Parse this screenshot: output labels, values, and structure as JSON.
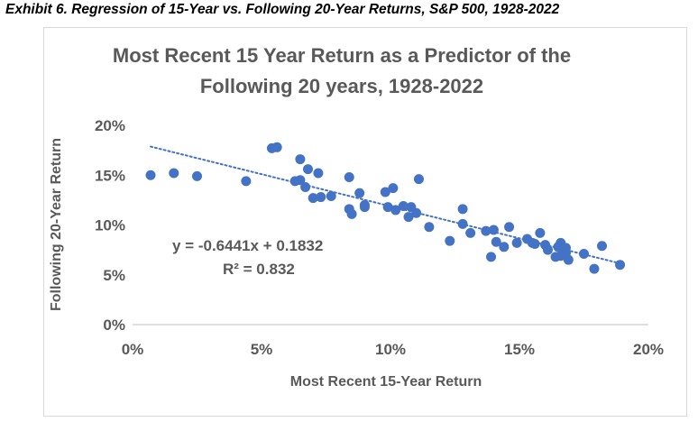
{
  "exhibit_title": "Exhibit 6. Regression of 15-Year vs. Following 20-Year Returns, S&P 500, 1928-2022",
  "colors": {
    "marker": "#4472c4",
    "trendline": "#4472c4",
    "text": "#595959",
    "axis": "#bfbfbf"
  },
  "chart_data": {
    "type": "scatter",
    "title": "Most Recent 15 Year Return as a Predictor of the Following 20 years, 1928-2022",
    "title_lines": [
      "Most Recent 15 Year Return as a Predictor of the",
      "Following 20 years, 1928-2022"
    ],
    "xlabel": "Most Recent 15-Year Return",
    "ylabel": "Following 20-Year Return",
    "xlim": [
      0,
      0.2
    ],
    "ylim": [
      0,
      0.2
    ],
    "xticks": [
      0,
      0.05,
      0.1,
      0.15,
      0.2
    ],
    "yticks": [
      0,
      0.05,
      0.1,
      0.15,
      0.2
    ],
    "xtick_labels": [
      "0%",
      "5%",
      "10%",
      "15%",
      "20%"
    ],
    "ytick_labels": [
      "0%",
      "5%",
      "10%",
      "15%",
      "20%"
    ],
    "grid": false,
    "legend": "none",
    "trendline": {
      "slope": -0.6441,
      "intercept": 0.1832,
      "style": "dotted",
      "x_range": [
        0.007,
        0.19
      ]
    },
    "annotations": [
      "y = -0.6441x + 0.1832",
      "R² = 0.832"
    ],
    "points": [
      [
        0.007,
        0.15
      ],
      [
        0.016,
        0.152
      ],
      [
        0.025,
        0.149
      ],
      [
        0.044,
        0.144
      ],
      [
        0.054,
        0.177
      ],
      [
        0.056,
        0.178
      ],
      [
        0.063,
        0.144
      ],
      [
        0.065,
        0.145
      ],
      [
        0.065,
        0.166
      ],
      [
        0.067,
        0.138
      ],
      [
        0.068,
        0.156
      ],
      [
        0.07,
        0.127
      ],
      [
        0.072,
        0.152
      ],
      [
        0.073,
        0.128
      ],
      [
        0.077,
        0.129
      ],
      [
        0.084,
        0.148
      ],
      [
        0.084,
        0.116
      ],
      [
        0.085,
        0.111
      ],
      [
        0.088,
        0.132
      ],
      [
        0.09,
        0.12
      ],
      [
        0.09,
        0.118
      ],
      [
        0.098,
        0.133
      ],
      [
        0.099,
        0.118
      ],
      [
        0.101,
        0.137
      ],
      [
        0.102,
        0.115
      ],
      [
        0.105,
        0.119
      ],
      [
        0.107,
        0.108
      ],
      [
        0.108,
        0.118
      ],
      [
        0.11,
        0.112
      ],
      [
        0.111,
        0.146
      ],
      [
        0.115,
        0.098
      ],
      [
        0.123,
        0.084
      ],
      [
        0.128,
        0.116
      ],
      [
        0.128,
        0.101
      ],
      [
        0.131,
        0.092
      ],
      [
        0.137,
        0.094
      ],
      [
        0.139,
        0.068
      ],
      [
        0.14,
        0.095
      ],
      [
        0.141,
        0.083
      ],
      [
        0.144,
        0.078
      ],
      [
        0.146,
        0.098
      ],
      [
        0.149,
        0.082
      ],
      [
        0.153,
        0.086
      ],
      [
        0.155,
        0.082
      ],
      [
        0.156,
        0.081
      ],
      [
        0.158,
        0.092
      ],
      [
        0.16,
        0.08
      ],
      [
        0.161,
        0.075
      ],
      [
        0.164,
        0.068
      ],
      [
        0.165,
        0.078
      ],
      [
        0.166,
        0.082
      ],
      [
        0.166,
        0.069
      ],
      [
        0.167,
        0.076
      ],
      [
        0.168,
        0.072
      ],
      [
        0.168,
        0.077
      ],
      [
        0.169,
        0.065
      ],
      [
        0.175,
        0.071
      ],
      [
        0.179,
        0.056
      ],
      [
        0.182,
        0.079
      ],
      [
        0.189,
        0.06
      ]
    ]
  }
}
